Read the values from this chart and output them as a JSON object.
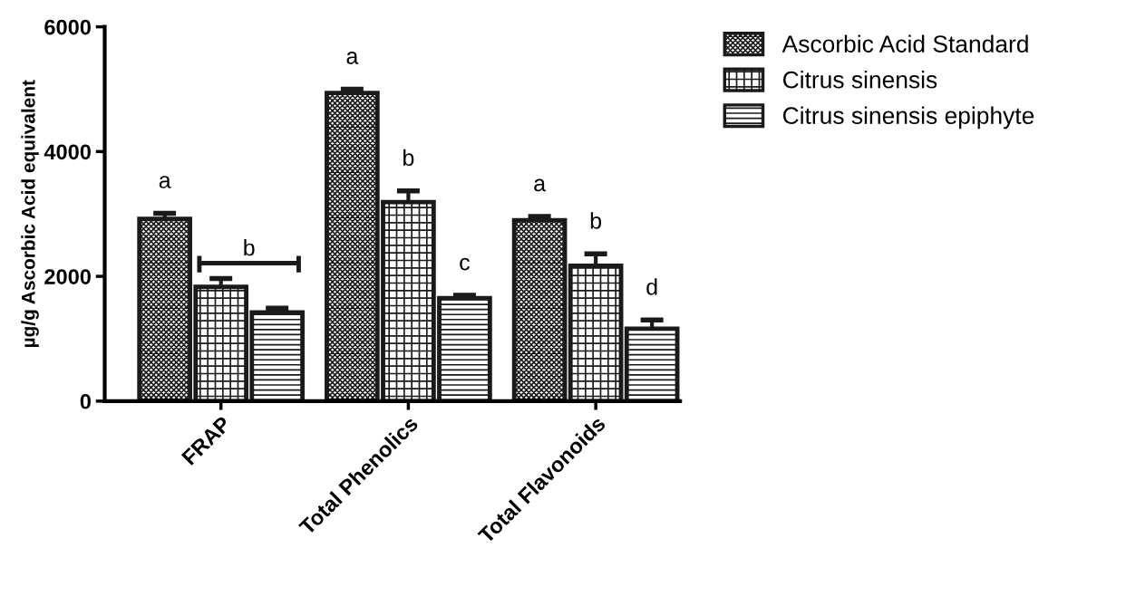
{
  "chart_data": {
    "type": "bar",
    "ylabel": "µg/g Ascorbic Acid equivalent",
    "categories": [
      "FRAP",
      "Total Phenolics",
      "Total Flavonoids"
    ],
    "series": [
      {
        "name": "Ascorbic Acid Standard",
        "color": "#1a1a1a",
        "values": [
          2920,
          4940,
          2900
        ],
        "errors": [
          90,
          60,
          60
        ]
      },
      {
        "name": "Citrus sinensis",
        "color": "#1a1a1a",
        "values": [
          1830,
          3190,
          2170
        ],
        "errors": [
          135,
          180,
          190
        ]
      },
      {
        "name": "Citrus sinensis epiphyte",
        "color": "#1a1a1a",
        "values": [
          1420,
          1650,
          1160
        ],
        "errors": [
          70,
          45,
          140
        ]
      }
    ],
    "ylim": [
      0,
      6000
    ],
    "yticks": [
      0,
      2000,
      4000,
      6000
    ],
    "grid": false,
    "legend": "top right",
    "annotations": [
      "a",
      "b",
      "a",
      "b",
      "c",
      "a",
      "b",
      "d"
    ]
  }
}
